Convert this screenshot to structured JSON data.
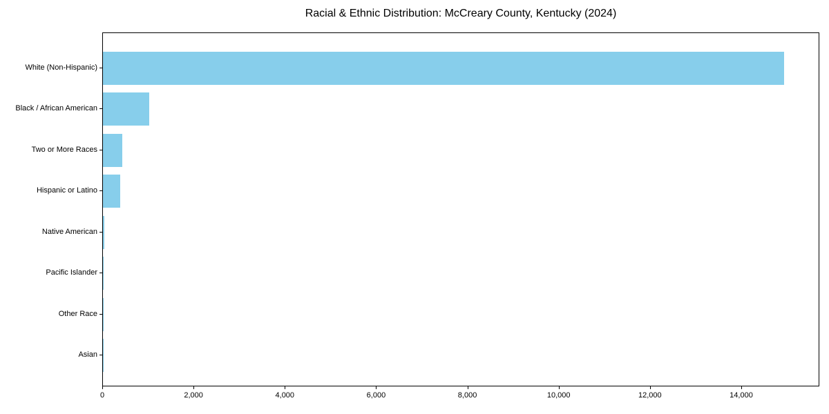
{
  "chart_data": {
    "type": "bar",
    "orientation": "horizontal",
    "title": "Racial & Ethnic Distribution: McCreary County, Kentucky (2024)",
    "categories": [
      "White (Non-Hispanic)",
      "Black / African American",
      "Two or More Races",
      "Hispanic or Latino",
      "Native American",
      "Pacific Islander",
      "Other Race",
      "Asian"
    ],
    "values": [
      14930,
      1020,
      430,
      380,
      30,
      10,
      8,
      5
    ],
    "xlabel": "",
    "ylabel": "",
    "xlim": [
      0,
      15680
    ],
    "xticks": [
      0,
      2000,
      4000,
      6000,
      8000,
      10000,
      12000,
      14000
    ],
    "xtick_labels": [
      "0",
      "2,000",
      "4,000",
      "6,000",
      "8,000",
      "10,000",
      "12,000",
      "14,000"
    ],
    "bar_color": "#87CEEB",
    "axis_color": "#000000",
    "background_color": "#ffffff",
    "grid": false,
    "legend": null
  }
}
